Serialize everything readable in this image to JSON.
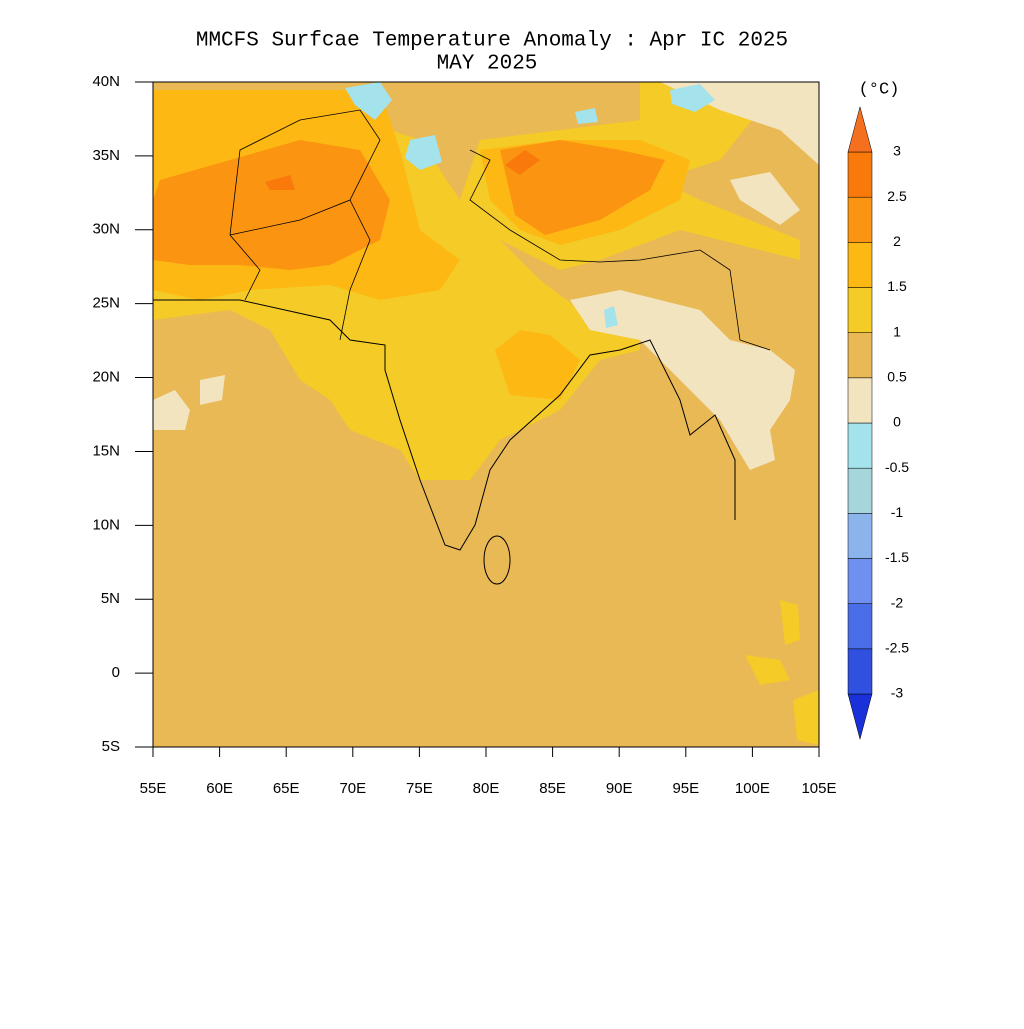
{
  "chart_data": {
    "type": "contour_map",
    "title": "MMCFS Surfcae Temperature Anomaly : Apr IC 2025",
    "subtitle": "MAY 2025",
    "xlim": [
      55,
      105
    ],
    "ylim": [
      -5,
      40
    ],
    "xticks": [
      {
        "value": 55,
        "label": "55E"
      },
      {
        "value": 60,
        "label": "60E"
      },
      {
        "value": 65,
        "label": "65E"
      },
      {
        "value": 70,
        "label": "70E"
      },
      {
        "value": 75,
        "label": "75E"
      },
      {
        "value": 80,
        "label": "80E"
      },
      {
        "value": 85,
        "label": "85E"
      },
      {
        "value": 90,
        "label": "90E"
      },
      {
        "value": 95,
        "label": "95E"
      },
      {
        "value": 100,
        "label": "100E"
      },
      {
        "value": 105,
        "label": "105E"
      }
    ],
    "yticks": [
      {
        "value": -5,
        "label": "5S"
      },
      0,
      {
        "value": 5,
        "label": "5N"
      },
      {
        "value": 10,
        "label": "10N"
      },
      {
        "value": 15,
        "label": "15N"
      },
      {
        "value": 20,
        "label": "20N"
      },
      {
        "value": 25,
        "label": "25N"
      },
      {
        "value": 30,
        "label": "30N"
      },
      {
        "value": 35,
        "label": "35N"
      },
      {
        "value": 40,
        "label": "40N"
      }
    ],
    "colorbar": {
      "label": "(°C)",
      "levels": [
        -3,
        -2.5,
        -2,
        -1.5,
        -1,
        -0.5,
        0,
        0.5,
        1,
        1.5,
        2,
        2.5,
        3
      ],
      "colors": [
        "#1a30d8",
        "#3050e0",
        "#4a6ee8",
        "#6f90f0",
        "#8cb4ec",
        "#a5d6dc",
        "#a4e2ec",
        "#f3e4c0",
        "#e8b955",
        "#f5cb27",
        "#fdb813",
        "#fb9410",
        "#f97a0b",
        "#f4701e"
      ]
    }
  }
}
